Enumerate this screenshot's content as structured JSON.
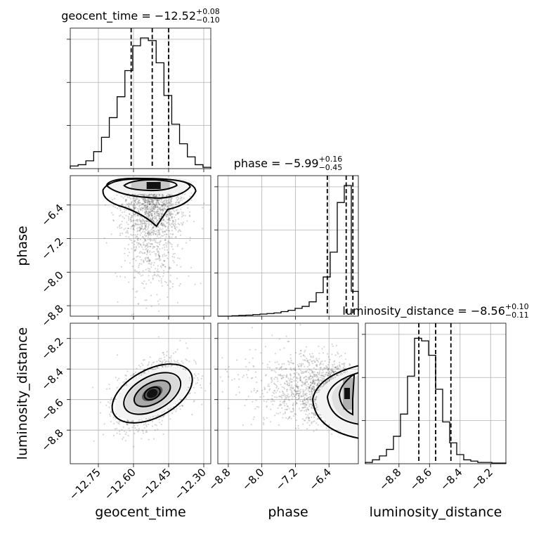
{
  "chart_data": {
    "type": "corner",
    "parameters": [
      {
        "name": "geocent_time",
        "label": "geocent_time",
        "title": {
          "prefix": "geocent_time = ",
          "median": "−12.52",
          "plus": "+0.08",
          "minus": "−0.10"
        },
        "range": [
          -12.87,
          -12.27
        ],
        "ticks": [
          -12.75,
          -12.6,
          -12.45,
          -12.3
        ],
        "tick_labels": [
          "−12.75",
          "−12.60",
          "−12.45",
          "−12.30"
        ],
        "quantiles": [
          -12.61,
          -12.52,
          -12.45
        ],
        "hist_counts": [
          0.02,
          0.03,
          0.06,
          0.13,
          0.24,
          0.39,
          0.55,
          0.75,
          0.94,
          1.0,
          0.98,
          0.81,
          0.56,
          0.34,
          0.19,
          0.09,
          0.03,
          0.01
        ]
      },
      {
        "name": "phase",
        "label": "phase",
        "title": {
          "prefix": "phase = ",
          "median": "−5.99",
          "plus": "+0.16",
          "minus": "−0.45"
        },
        "range": [
          -9.05,
          -5.7
        ],
        "ticks": [
          -8.8,
          -8.0,
          -7.2,
          -6.4
        ],
        "tick_labels": [
          "−8.8",
          "−8.0",
          "−7.2",
          "−6.4"
        ],
        "quantiles": [
          -6.44,
          -5.99,
          -5.83
        ],
        "hist_counts": [
          0.0,
          0.0,
          0.003,
          0.006,
          0.008,
          0.012,
          0.016,
          0.02,
          0.025,
          0.035,
          0.045,
          0.06,
          0.075,
          0.11,
          0.18,
          0.3,
          0.49,
          0.87,
          1.0,
          0.19
        ]
      },
      {
        "name": "luminosity_distance",
        "label": "luminosity_distance",
        "title": {
          "prefix": "luminosity_distance = ",
          "median": "−8.56",
          "plus": "+0.10",
          "minus": "−0.11"
        },
        "range": [
          -9.02,
          -8.1
        ],
        "ticks": [
          -8.8,
          -8.6,
          -8.4,
          -8.2
        ],
        "tick_labels": [
          "−8.8",
          "−8.6",
          "−8.4",
          "−8.2"
        ],
        "quantiles": [
          -8.67,
          -8.56,
          -8.46
        ],
        "hist_counts": [
          0.01,
          0.03,
          0.06,
          0.11,
          0.21,
          0.38,
          0.67,
          0.96,
          0.94,
          0.83,
          0.57,
          0.32,
          0.16,
          0.07,
          0.03,
          0.02,
          0.01,
          0.01,
          0.005,
          0.005
        ]
      }
    ],
    "pairs": [
      {
        "x": "geocent_time",
        "y": "phase",
        "center": [
          -12.52,
          -5.99
        ],
        "sd": [
          0.065,
          0.9
        ],
        "skew_y": "toward_lower",
        "ylim": [
          -9.05,
          -5.7
        ]
      },
      {
        "x": "geocent_time",
        "y": "luminosity_distance",
        "center": [
          -12.52,
          -8.56
        ],
        "sd": [
          0.075,
          0.11
        ],
        "correlation": 0.45,
        "ylim": [
          -9.02,
          -8.1
        ]
      },
      {
        "x": "phase",
        "y": "luminosity_distance",
        "center": [
          -5.99,
          -8.56
        ],
        "sd": [
          0.9,
          0.11
        ],
        "correlation": -0.35,
        "ylim": [
          -9.02,
          -8.1
        ]
      }
    ],
    "grid": true
  }
}
